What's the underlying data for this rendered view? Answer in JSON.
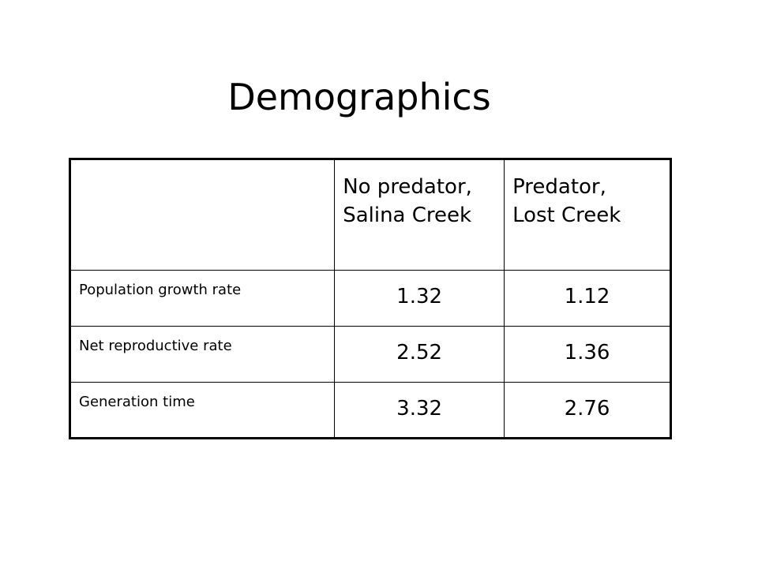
{
  "slide": {
    "title": "Demographics"
  },
  "table": {
    "columns": [
      {
        "line1": "No predator,",
        "line2": "Salina Creek"
      },
      {
        "line1": "Predator,",
        "line2": "Lost Creek"
      }
    ],
    "rows": [
      {
        "label": "Population growth rate",
        "values": [
          "1.32",
          "1.12"
        ]
      },
      {
        "label": "Net reproductive rate",
        "values": [
          "2.52",
          "1.36"
        ]
      },
      {
        "label": "Generation time",
        "values": [
          "3.32",
          "2.76"
        ]
      }
    ]
  }
}
